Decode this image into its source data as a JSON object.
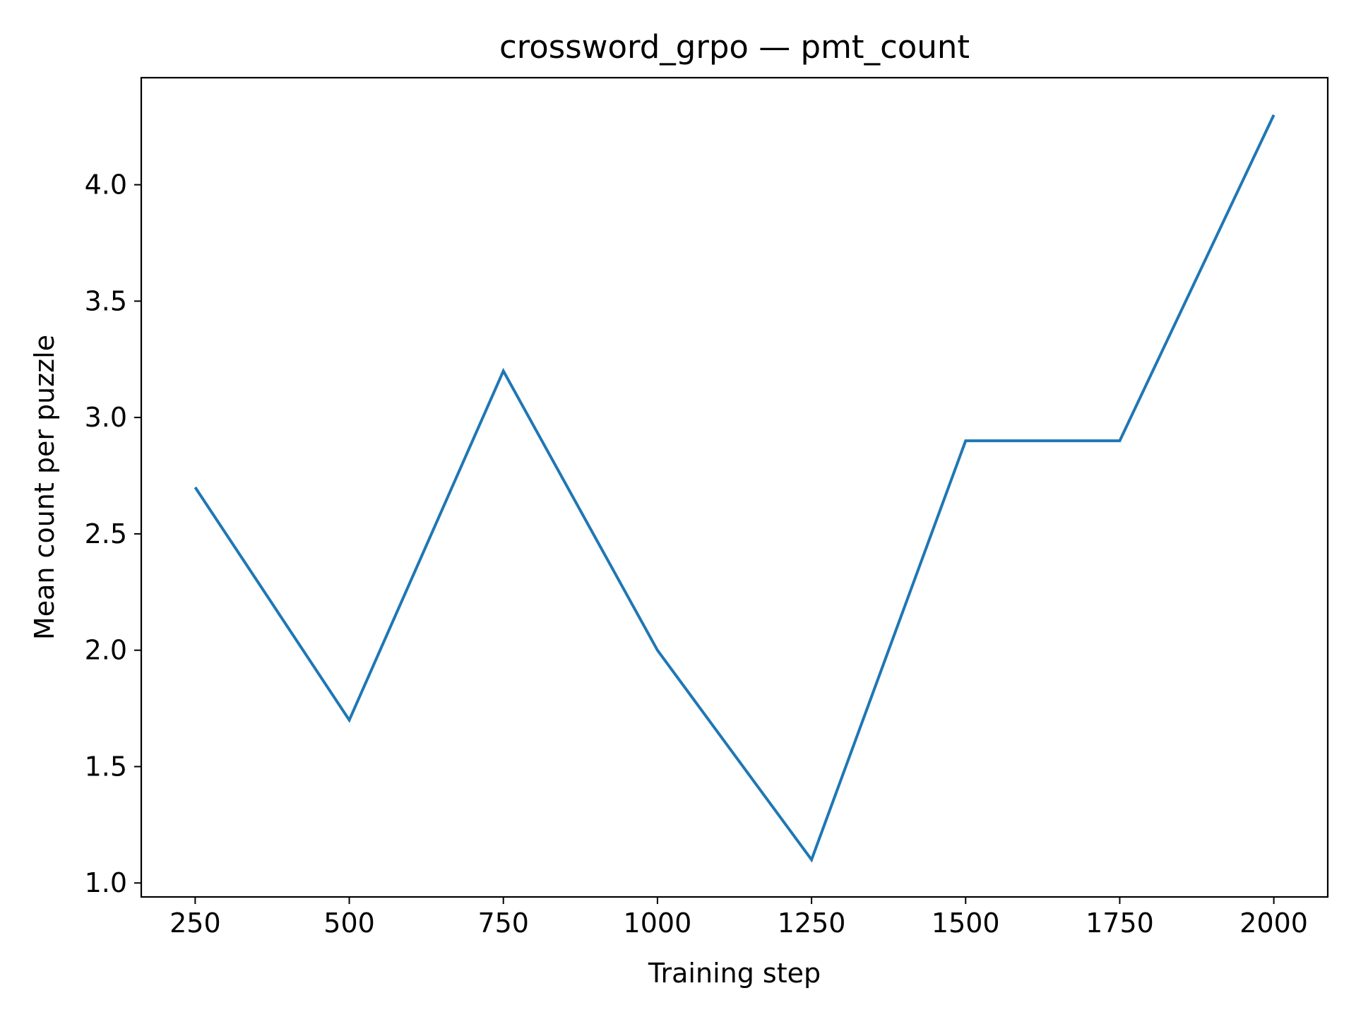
{
  "chart_data": {
    "type": "line",
    "title": "crossword_grpo — pmt_count",
    "xlabel": "Training step",
    "ylabel": "Mean count per puzzle",
    "x": [
      250,
      500,
      750,
      1000,
      1250,
      1500,
      1750,
      2000
    ],
    "series": [
      {
        "values": [
          2.7,
          1.7,
          3.2,
          2.0,
          1.1,
          2.9,
          2.9,
          4.3
        ],
        "color": "#1f77b4"
      }
    ],
    "xticks": [
      "250",
      "500",
      "750",
      "1000",
      "1250",
      "1500",
      "1750",
      "2000"
    ],
    "yticks": [
      "1.0",
      "1.5",
      "2.0",
      "2.5",
      "3.0",
      "3.5",
      "4.0"
    ],
    "xlim": [
      162.5,
      2087.5
    ],
    "ylim": [
      0.94,
      4.46
    ],
    "grid": false,
    "legend": "none"
  }
}
